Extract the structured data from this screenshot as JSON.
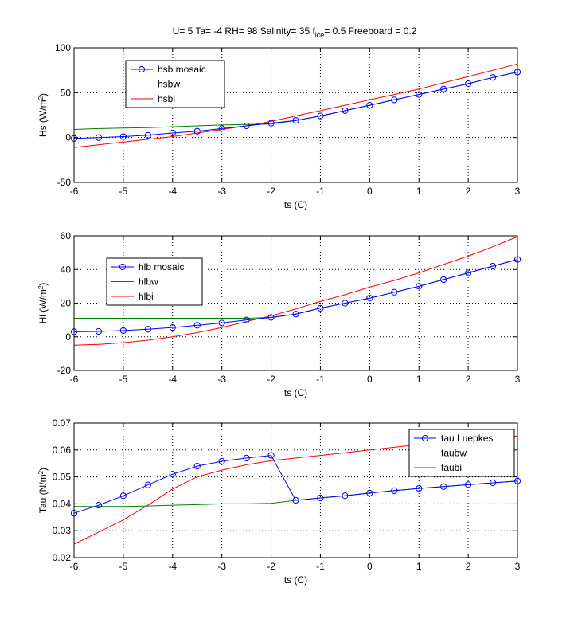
{
  "figure_title": {
    "main": "U= 5  Ta= -4  RH= 98 Salinity= 35  f",
    "sub": "ice",
    "rest": "= 0.5 Freeboard = 0.2"
  },
  "colors": {
    "mosaic": "#0000ff",
    "water": "#008000",
    "ice": "#ff0000",
    "grid": "#000000"
  },
  "chart_data": [
    {
      "type": "line",
      "xlabel": "ts (C)",
      "ylabel": "Hs (W/m",
      "ylabel_sup": "2",
      "ylabel_end": ")",
      "xlim": [
        -6,
        3
      ],
      "ylim": [
        -50,
        100
      ],
      "xticks": [
        -6,
        -5,
        -4,
        -3,
        -2,
        -1,
        0,
        1,
        2,
        3
      ],
      "yticks": [
        -50,
        0,
        50,
        100
      ],
      "grid": true,
      "legend_position": "top-left",
      "x": [
        -6,
        -5.5,
        -5,
        -4.5,
        -4,
        -3.5,
        -3,
        -2.5,
        -2,
        -1.5,
        -1,
        -0.5,
        0,
        0.5,
        1,
        1.5,
        2,
        2.5,
        3
      ],
      "series": [
        {
          "name": "hsb mosaic",
          "color": "#0000ff",
          "marker": "circle",
          "values": [
            -1,
            0,
            1,
            2.5,
            5,
            7,
            10,
            13,
            16,
            19,
            24,
            30,
            36,
            42,
            48,
            54,
            60,
            67,
            73
          ]
        },
        {
          "name": "hsbw",
          "color": "#008000",
          "marker": "none",
          "values": [
            9,
            10,
            10.5,
            11,
            12,
            13,
            14,
            14.5,
            15,
            19,
            24,
            30,
            36,
            42,
            48,
            54,
            60,
            67,
            73
          ]
        },
        {
          "name": "hsbi",
          "color": "#ff0000",
          "marker": "none",
          "values": [
            -11,
            -8,
            -5,
            -2,
            1,
            5,
            9,
            13,
            18,
            24,
            30,
            36,
            42,
            48,
            54,
            61,
            68,
            75,
            82
          ]
        }
      ]
    },
    {
      "type": "line",
      "xlabel": "ts (C)",
      "ylabel": "Hl (W/m",
      "ylabel_sup": "2",
      "ylabel_end": ")",
      "xlim": [
        -6,
        3
      ],
      "ylim": [
        -20,
        60
      ],
      "xticks": [
        -6,
        -5,
        -4,
        -3,
        -2,
        -1,
        0,
        1,
        2,
        3
      ],
      "yticks": [
        -20,
        0,
        20,
        40,
        60
      ],
      "grid": true,
      "legend_position": "middle-left",
      "x": [
        -6,
        -5.5,
        -5,
        -4.5,
        -4,
        -3.5,
        -3,
        -2.5,
        -2,
        -1.5,
        -1,
        -0.5,
        0,
        0.5,
        1,
        1.5,
        2,
        2.5,
        3
      ],
      "series": [
        {
          "name": "hlb mosaic",
          "color": "#0000ff",
          "marker": "circle",
          "values": [
            3,
            3.2,
            3.7,
            4.5,
            5.5,
            6.8,
            8.2,
            10,
            11.5,
            13.5,
            17,
            20,
            23,
            26.5,
            30,
            34,
            38,
            42,
            46
          ]
        },
        {
          "name": "hlbw",
          "color": "#008000",
          "marker": "none",
          "values": [
            11,
            11,
            11,
            11,
            11,
            11,
            11,
            11,
            11.5,
            13.5,
            17,
            20,
            23,
            26.5,
            30,
            34,
            38,
            42,
            46
          ]
        },
        {
          "name": "hlbi",
          "color": "#ff0000",
          "marker": "none",
          "values": [
            -5,
            -4.5,
            -3.5,
            -2,
            0,
            2.5,
            5.5,
            9,
            12.5,
            16.5,
            21,
            25,
            29.5,
            33.5,
            38,
            43,
            48,
            53.5,
            59.5
          ]
        }
      ]
    },
    {
      "type": "line",
      "xlabel": "ts (C)",
      "ylabel": "Tau (N/m",
      "ylabel_sup": "2",
      "ylabel_end": ")",
      "xlim": [
        -6,
        3
      ],
      "ylim": [
        0.02,
        0.07
      ],
      "xticks": [
        -6,
        -5,
        -4,
        -3,
        -2,
        -1,
        0,
        1,
        2,
        3
      ],
      "yticks": [
        0.02,
        0.03,
        0.04,
        0.05,
        0.06,
        0.07
      ],
      "grid": true,
      "legend_position": "top-right",
      "x": [
        -6,
        -5.5,
        -5,
        -4.5,
        -4,
        -3.5,
        -3,
        -2.5,
        -2,
        -1.5,
        -1,
        -0.5,
        0,
        0.5,
        1,
        1.5,
        2,
        2.5,
        3
      ],
      "series": [
        {
          "name": "tau Luepkes",
          "color": "#0000ff",
          "marker": "circle",
          "values": [
            0.0365,
            0.0395,
            0.043,
            0.047,
            0.051,
            0.054,
            0.0558,
            0.057,
            0.058,
            0.0413,
            0.0422,
            0.043,
            0.044,
            0.0449,
            0.0457,
            0.0464,
            0.0471,
            0.0478,
            0.0485
          ]
        },
        {
          "name": "taubw",
          "color": "#008000",
          "marker": "none",
          "values": [
            0.039,
            0.039,
            0.039,
            0.0392,
            0.0395,
            0.0397,
            0.04,
            0.04,
            0.0402,
            0.0413,
            0.0422,
            0.043,
            0.044,
            0.0449,
            0.0457,
            0.0464,
            0.0471,
            0.0478,
            0.0485
          ]
        },
        {
          "name": "taubi",
          "color": "#ff0000",
          "marker": "none",
          "values": [
            0.025,
            0.0295,
            0.034,
            0.0395,
            0.0455,
            0.05,
            0.0525,
            0.0545,
            0.056,
            0.057,
            0.058,
            0.059,
            0.06,
            0.061,
            0.062,
            0.063,
            0.0637,
            0.0645,
            0.0652
          ]
        }
      ]
    }
  ]
}
